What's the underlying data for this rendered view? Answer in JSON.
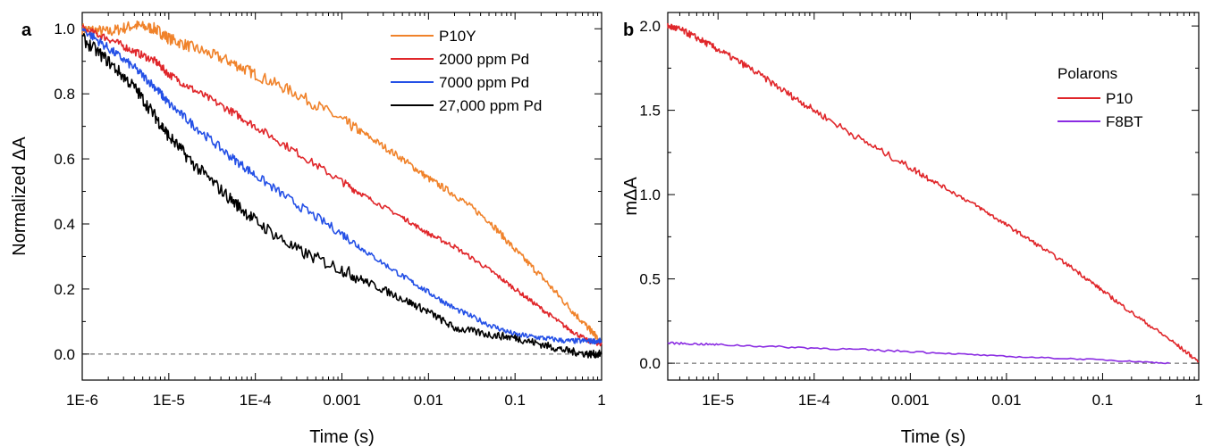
{
  "chart_data": [
    {
      "panel_label": "a",
      "type": "line",
      "xscale": "log",
      "xlim": [
        1e-06,
        1
      ],
      "ylim": [
        -0.08,
        1.05
      ],
      "xlabel": "Time (s)",
      "ylabel": "Normalized ΔA",
      "x_ticks": [
        1e-06,
        1e-05,
        0.0001,
        0.001,
        0.01,
        0.1,
        1
      ],
      "x_tick_labels": [
        "1E-6",
        "1E-5",
        "1E-4",
        "0.001",
        "0.01",
        "0.1",
        "1"
      ],
      "y_ticks": [
        0.0,
        0.2,
        0.4,
        0.6,
        0.8,
        1.0
      ],
      "y_tick_labels": [
        "0.0",
        "0.2",
        "0.4",
        "0.6",
        "0.8",
        "1.0"
      ],
      "zero_line": true,
      "legend_position": "top-right",
      "legend_title": "",
      "series": [
        {
          "name": "P10Y",
          "color": "#f0822a",
          "x": [
            1e-06,
            2e-06,
            4e-06,
            7e-06,
            1e-05,
            2e-05,
            5e-05,
            0.0001,
            0.0003,
            0.001,
            0.002,
            0.005,
            0.01,
            0.02,
            0.05,
            0.1,
            0.2,
            0.4,
            0.7,
            0.9
          ],
          "y": [
            1.0,
            0.99,
            1.01,
            1.0,
            0.97,
            0.94,
            0.9,
            0.86,
            0.8,
            0.72,
            0.67,
            0.6,
            0.54,
            0.49,
            0.41,
            0.32,
            0.24,
            0.15,
            0.08,
            0.05
          ]
        },
        {
          "name": "2000 ppm Pd",
          "color": "#e0262a",
          "x": [
            1e-06,
            2e-06,
            4e-06,
            7e-06,
            1e-05,
            2e-05,
            5e-05,
            0.0001,
            0.0003,
            0.001,
            0.002,
            0.005,
            0.01,
            0.02,
            0.05,
            0.1,
            0.2,
            0.4,
            0.7,
            1.0
          ],
          "y": [
            1.0,
            0.97,
            0.93,
            0.9,
            0.86,
            0.81,
            0.75,
            0.7,
            0.62,
            0.53,
            0.48,
            0.42,
            0.37,
            0.33,
            0.26,
            0.2,
            0.14,
            0.08,
            0.04,
            0.03
          ]
        },
        {
          "name": "7000 ppm Pd",
          "color": "#2450e6",
          "x": [
            1e-06,
            2e-06,
            4e-06,
            7e-06,
            1e-05,
            2e-05,
            5e-05,
            0.0001,
            0.0003,
            0.001,
            0.002,
            0.005,
            0.01,
            0.02,
            0.05,
            0.1,
            0.2,
            0.4,
            0.7,
            1.0
          ],
          "y": [
            1.0,
            0.94,
            0.88,
            0.82,
            0.77,
            0.7,
            0.61,
            0.55,
            0.46,
            0.37,
            0.31,
            0.24,
            0.19,
            0.14,
            0.09,
            0.06,
            0.05,
            0.04,
            0.04,
            0.04
          ]
        },
        {
          "name": "27,000 ppm Pd",
          "color": "#000000",
          "x": [
            1e-06,
            2e-06,
            4e-06,
            7e-06,
            1e-05,
            2e-05,
            5e-05,
            0.0001,
            0.0003,
            0.001,
            0.002,
            0.005,
            0.01,
            0.02,
            0.05,
            0.1,
            0.2,
            0.4,
            0.7,
            1.0
          ],
          "y": [
            0.97,
            0.9,
            0.82,
            0.73,
            0.67,
            0.58,
            0.48,
            0.41,
            0.32,
            0.26,
            0.22,
            0.17,
            0.13,
            0.08,
            0.06,
            0.05,
            0.03,
            0.01,
            0.0,
            0.0
          ]
        }
      ]
    },
    {
      "panel_label": "b",
      "type": "line",
      "xscale": "log",
      "xlim": [
        3e-06,
        1
      ],
      "ylim": [
        -0.1,
        2.08
      ],
      "xlabel": "Time (s)",
      "ylabel": "mΔA",
      "x_ticks": [
        1e-05,
        0.0001,
        0.001,
        0.01,
        0.1,
        1
      ],
      "x_tick_labels": [
        "1E-5",
        "1E-4",
        "0.001",
        "0.01",
        "0.1",
        "1"
      ],
      "y_ticks": [
        0.0,
        0.5,
        1.0,
        1.5,
        2.0
      ],
      "y_tick_labels": [
        "0.0",
        "0.5",
        "1.0",
        "1.5",
        "2.0"
      ],
      "zero_line": true,
      "legend_position": "top-right",
      "legend_title": "Polarons",
      "series": [
        {
          "name": "P10",
          "color": "#e0262a",
          "x": [
            3e-06,
            4e-06,
            6e-06,
            1e-05,
            2e-05,
            5e-05,
            0.0001,
            0.0003,
            0.001,
            0.002,
            0.005,
            0.01,
            0.02,
            0.05,
            0.1,
            0.2,
            0.5,
            1.0
          ],
          "y": [
            2.0,
            1.98,
            1.93,
            1.86,
            1.76,
            1.61,
            1.5,
            1.33,
            1.16,
            1.06,
            0.93,
            0.82,
            0.71,
            0.56,
            0.43,
            0.3,
            0.14,
            0.01
          ]
        },
        {
          "name": "F8BT",
          "color": "#8a2be2",
          "x": [
            3e-06,
            1e-05,
            0.0001,
            0.001,
            0.01,
            0.1,
            0.5
          ],
          "y": [
            0.12,
            0.11,
            0.09,
            0.07,
            0.04,
            0.02,
            0.0
          ]
        }
      ]
    }
  ]
}
